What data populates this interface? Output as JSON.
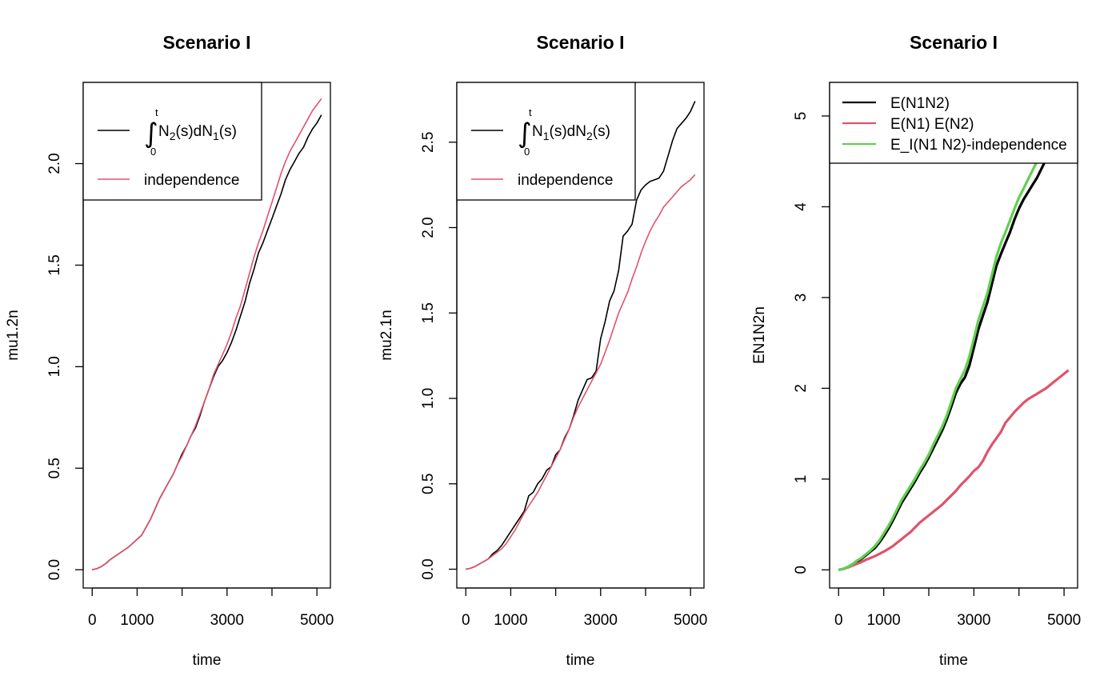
{
  "colors": {
    "black": "#000000",
    "red": "#DF536B",
    "green": "#61D04F"
  },
  "chart_data": [
    {
      "type": "line",
      "title": "Scenario I",
      "xlabel": "time",
      "ylabel": "mu1.2n",
      "xlim": [
        -200,
        5300
      ],
      "ylim": [
        -0.09,
        2.4
      ],
      "xticks": [
        0,
        1000,
        2000,
        3000,
        4000,
        5000
      ],
      "xtick_labels": [
        "0",
        "1000",
        "",
        "3000",
        "",
        "5000"
      ],
      "yticks": [
        0.0,
        0.5,
        1.0,
        1.5,
        2.0
      ],
      "ytick_labels": [
        "0.0",
        "0.5",
        "1.0",
        "1.5",
        "2.0"
      ],
      "legend": {
        "position": "top-left",
        "entries": [
          {
            "label": "∫0t N2(s)dN1(s)",
            "math": {
              "integral": "∫",
              "lower": "0",
              "upper": "t",
              "parts": [
                "N",
                "2",
                "(s)dN",
                "1",
                "(s)"
              ]
            },
            "color": "#000000"
          },
          {
            "label": "independence",
            "color": "#DF536B"
          }
        ]
      },
      "series": [
        {
          "color": "#000000",
          "width": 1.6,
          "x": [
            0,
            100,
            200,
            300,
            400,
            500,
            600,
            700,
            800,
            900,
            1000,
            1100,
            1200,
            1300,
            1400,
            1500,
            1600,
            1700,
            1800,
            1900,
            2000,
            2100,
            2200,
            2300,
            2400,
            2500,
            2600,
            2700,
            2800,
            2900,
            3000,
            3100,
            3200,
            3300,
            3400,
            3500,
            3600,
            3700,
            3800,
            3900,
            4000,
            4100,
            4200,
            4300,
            4400,
            4500,
            4600,
            4700,
            4800,
            4900,
            5000,
            5100
          ],
          "y": [
            0.0,
            0.005,
            0.015,
            0.03,
            0.05,
            0.065,
            0.08,
            0.095,
            0.11,
            0.13,
            0.15,
            0.17,
            0.21,
            0.25,
            0.3,
            0.35,
            0.39,
            0.43,
            0.47,
            0.52,
            0.57,
            0.61,
            0.66,
            0.7,
            0.76,
            0.83,
            0.89,
            0.95,
            1.0,
            1.03,
            1.07,
            1.12,
            1.18,
            1.25,
            1.32,
            1.41,
            1.48,
            1.56,
            1.61,
            1.67,
            1.73,
            1.79,
            1.85,
            1.92,
            1.97,
            2.01,
            2.05,
            2.08,
            2.13,
            2.17,
            2.2,
            2.24
          ]
        },
        {
          "color": "#DF536B",
          "width": 1.6,
          "x": [
            0,
            100,
            200,
            300,
            400,
            500,
            600,
            700,
            800,
            900,
            1000,
            1100,
            1200,
            1300,
            1400,
            1500,
            1600,
            1700,
            1800,
            1900,
            2000,
            2100,
            2200,
            2300,
            2400,
            2500,
            2600,
            2700,
            2800,
            2900,
            3000,
            3100,
            3200,
            3300,
            3400,
            3500,
            3600,
            3700,
            3800,
            3900,
            4000,
            4100,
            4200,
            4300,
            4400,
            4500,
            4600,
            4700,
            4800,
            4900,
            5000,
            5100
          ],
          "y": [
            0.0,
            0.005,
            0.015,
            0.03,
            0.05,
            0.065,
            0.08,
            0.095,
            0.11,
            0.13,
            0.15,
            0.17,
            0.21,
            0.25,
            0.3,
            0.35,
            0.39,
            0.43,
            0.47,
            0.52,
            0.56,
            0.61,
            0.66,
            0.71,
            0.77,
            0.83,
            0.89,
            0.96,
            1.01,
            1.06,
            1.11,
            1.17,
            1.24,
            1.3,
            1.38,
            1.46,
            1.54,
            1.61,
            1.67,
            1.74,
            1.81,
            1.88,
            1.95,
            2.01,
            2.06,
            2.1,
            2.14,
            2.18,
            2.22,
            2.26,
            2.29,
            2.32
          ]
        }
      ]
    },
    {
      "type": "line",
      "title": "Scenario I",
      "xlabel": "time",
      "ylabel": "mu2.1n",
      "xlim": [
        -200,
        5300
      ],
      "ylim": [
        -0.11,
        2.85
      ],
      "xticks": [
        0,
        1000,
        2000,
        3000,
        4000,
        5000
      ],
      "xtick_labels": [
        "0",
        "1000",
        "",
        "3000",
        "",
        "5000"
      ],
      "yticks": [
        0.0,
        0.5,
        1.0,
        1.5,
        2.0,
        2.5
      ],
      "ytick_labels": [
        "0.0",
        "0.5",
        "1.0",
        "1.5",
        "2.0",
        "2.5"
      ],
      "legend": {
        "position": "top-left",
        "entries": [
          {
            "label": "∫0t N1(s)dN2(s)",
            "math": {
              "integral": "∫",
              "lower": "0",
              "upper": "t",
              "parts": [
                "N",
                "1",
                "(s)dN",
                "2",
                "(s)"
              ]
            },
            "color": "#000000"
          },
          {
            "label": "independence",
            "color": "#DF536B"
          }
        ]
      },
      "series": [
        {
          "color": "#000000",
          "width": 1.6,
          "x": [
            0,
            100,
            200,
            300,
            400,
            500,
            600,
            700,
            800,
            900,
            1000,
            1100,
            1200,
            1300,
            1400,
            1500,
            1600,
            1700,
            1800,
            1900,
            2000,
            2100,
            2200,
            2300,
            2400,
            2500,
            2600,
            2700,
            2800,
            2900,
            3000,
            3100,
            3200,
            3300,
            3400,
            3500,
            3600,
            3700,
            3800,
            3900,
            4000,
            4100,
            4200,
            4300,
            4400,
            4500,
            4600,
            4700,
            4800,
            4900,
            5000,
            5100
          ],
          "y": [
            0.0,
            0.005,
            0.015,
            0.03,
            0.045,
            0.06,
            0.09,
            0.11,
            0.14,
            0.18,
            0.22,
            0.26,
            0.3,
            0.34,
            0.43,
            0.45,
            0.5,
            0.53,
            0.58,
            0.6,
            0.67,
            0.7,
            0.77,
            0.82,
            0.9,
            0.99,
            1.05,
            1.11,
            1.12,
            1.16,
            1.35,
            1.45,
            1.57,
            1.63,
            1.75,
            1.95,
            1.98,
            2.02,
            2.16,
            2.22,
            2.25,
            2.27,
            2.28,
            2.29,
            2.33,
            2.42,
            2.51,
            2.58,
            2.61,
            2.64,
            2.68,
            2.74
          ]
        },
        {
          "color": "#DF536B",
          "width": 1.6,
          "x": [
            0,
            100,
            200,
            300,
            400,
            500,
            600,
            700,
            800,
            900,
            1000,
            1100,
            1200,
            1300,
            1400,
            1500,
            1600,
            1700,
            1800,
            1900,
            2000,
            2100,
            2200,
            2300,
            2400,
            2500,
            2600,
            2700,
            2800,
            2900,
            3000,
            3100,
            3200,
            3300,
            3400,
            3500,
            3600,
            3700,
            3800,
            3900,
            4000,
            4100,
            4200,
            4300,
            4400,
            4500,
            4600,
            4700,
            4800,
            4900,
            5000,
            5100
          ],
          "y": [
            0.0,
            0.005,
            0.015,
            0.03,
            0.045,
            0.06,
            0.08,
            0.1,
            0.12,
            0.15,
            0.19,
            0.23,
            0.28,
            0.33,
            0.37,
            0.41,
            0.45,
            0.5,
            0.55,
            0.6,
            0.65,
            0.7,
            0.76,
            0.82,
            0.89,
            0.95,
            1.0,
            1.05,
            1.1,
            1.15,
            1.2,
            1.27,
            1.34,
            1.42,
            1.5,
            1.56,
            1.62,
            1.7,
            1.77,
            1.85,
            1.92,
            1.98,
            2.03,
            2.07,
            2.12,
            2.15,
            2.18,
            2.21,
            2.24,
            2.26,
            2.28,
            2.31
          ]
        }
      ]
    },
    {
      "type": "line",
      "title": "Scenario I",
      "xlabel": "time",
      "ylabel": "EN1N2n",
      "xlim": [
        -200,
        5300
      ],
      "ylim": [
        -0.2,
        5.37
      ],
      "xticks": [
        0,
        1000,
        2000,
        3000,
        4000,
        5000
      ],
      "xtick_labels": [
        "0",
        "1000",
        "",
        "3000",
        "",
        "5000"
      ],
      "yticks": [
        0,
        1,
        2,
        3,
        4,
        5
      ],
      "ytick_labels": [
        "0",
        "1",
        "2",
        "3",
        "4",
        "5"
      ],
      "legend": {
        "position": "top",
        "entries": [
          {
            "label": "E(N1N2)",
            "color": "#000000"
          },
          {
            "label": "E(N1) E(N2)",
            "color": "#DF536B"
          },
          {
            "label": "E_I(N1 N2)-independence",
            "color": "#61D04F"
          }
        ]
      },
      "series": [
        {
          "color": "#000000",
          "width": 3.2,
          "x": [
            0,
            100,
            200,
            300,
            400,
            500,
            600,
            700,
            800,
            900,
            1000,
            1100,
            1200,
            1300,
            1400,
            1500,
            1600,
            1700,
            1800,
            1900,
            2000,
            2100,
            2200,
            2300,
            2400,
            2500,
            2600,
            2700,
            2800,
            2900,
            3000,
            3100,
            3200,
            3300,
            3400,
            3500,
            3600,
            3700,
            3800,
            3900,
            4000,
            4100,
            4200,
            4300,
            4400,
            4500,
            4600
          ],
          "y": [
            0.0,
            0.01,
            0.03,
            0.06,
            0.09,
            0.12,
            0.16,
            0.2,
            0.24,
            0.3,
            0.37,
            0.45,
            0.54,
            0.64,
            0.74,
            0.82,
            0.9,
            0.98,
            1.07,
            1.15,
            1.24,
            1.34,
            1.44,
            1.54,
            1.66,
            1.8,
            1.95,
            2.05,
            2.12,
            2.25,
            2.45,
            2.65,
            2.8,
            2.95,
            3.15,
            3.35,
            3.48,
            3.6,
            3.72,
            3.86,
            3.98,
            4.08,
            4.16,
            4.24,
            4.32,
            4.42,
            4.52
          ]
        },
        {
          "color": "#DF536B",
          "width": 3.2,
          "x": [
            0,
            100,
            200,
            300,
            400,
            500,
            600,
            700,
            800,
            900,
            1000,
            1100,
            1200,
            1300,
            1400,
            1500,
            1600,
            1700,
            1800,
            1900,
            2000,
            2100,
            2200,
            2300,
            2400,
            2500,
            2600,
            2700,
            2800,
            2900,
            3000,
            3100,
            3200,
            3300,
            3400,
            3500,
            3600,
            3700,
            3800,
            3900,
            4000,
            4100,
            4200,
            4300,
            4400,
            4500,
            4600,
            4700,
            4800,
            4900,
            5000,
            5100
          ],
          "y": [
            0.0,
            0.01,
            0.025,
            0.045,
            0.065,
            0.085,
            0.11,
            0.13,
            0.15,
            0.175,
            0.2,
            0.23,
            0.26,
            0.3,
            0.34,
            0.38,
            0.42,
            0.47,
            0.52,
            0.56,
            0.6,
            0.64,
            0.68,
            0.72,
            0.77,
            0.82,
            0.87,
            0.93,
            0.98,
            1.03,
            1.09,
            1.13,
            1.2,
            1.3,
            1.38,
            1.45,
            1.52,
            1.62,
            1.68,
            1.74,
            1.79,
            1.84,
            1.88,
            1.91,
            1.94,
            1.97,
            2.0,
            2.04,
            2.08,
            2.12,
            2.16,
            2.2
          ]
        },
        {
          "color": "#61D04F",
          "width": 3.2,
          "x": [
            0,
            100,
            200,
            300,
            400,
            500,
            600,
            700,
            800,
            900,
            1000,
            1100,
            1200,
            1300,
            1400,
            1500,
            1600,
            1700,
            1800,
            1900,
            2000,
            2100,
            2200,
            2300,
            2400,
            2500,
            2600,
            2700,
            2800,
            2900,
            3000,
            3100,
            3200,
            3300,
            3400,
            3500,
            3600,
            3700,
            3800,
            3900,
            4000,
            4100,
            4200,
            4300,
            4400
          ],
          "y": [
            0.0,
            0.01,
            0.03,
            0.06,
            0.1,
            0.13,
            0.17,
            0.21,
            0.26,
            0.32,
            0.4,
            0.48,
            0.57,
            0.67,
            0.77,
            0.85,
            0.93,
            1.01,
            1.1,
            1.18,
            1.27,
            1.38,
            1.48,
            1.58,
            1.7,
            1.85,
            2.0,
            2.1,
            2.2,
            2.35,
            2.55,
            2.75,
            2.9,
            3.05,
            3.25,
            3.45,
            3.6,
            3.72,
            3.85,
            3.98,
            4.1,
            4.2,
            4.3,
            4.4,
            4.5
          ]
        }
      ]
    }
  ]
}
